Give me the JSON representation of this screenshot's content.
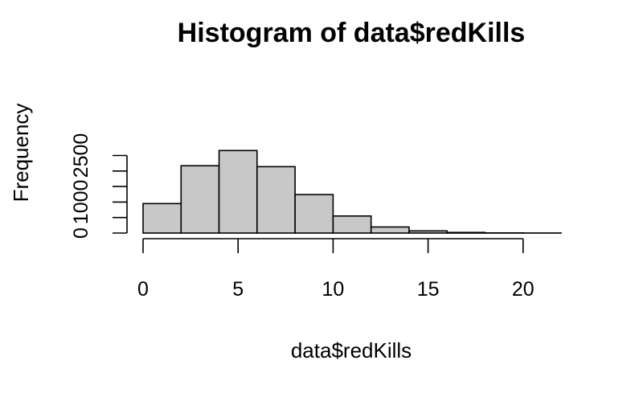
{
  "chart_data": {
    "type": "bar",
    "title": "Histogram of data$redKills",
    "xlabel": "data$redKills",
    "ylabel": "Frequency",
    "bin_edges": [
      0,
      2,
      4,
      6,
      8,
      10,
      12,
      14,
      16,
      18,
      20,
      22
    ],
    "values": [
      950,
      2170,
      2660,
      2140,
      1240,
      550,
      195,
      70,
      20,
      5,
      2
    ],
    "xlim": [
      0,
      22
    ],
    "ylim": [
      0,
      2500
    ],
    "x_ticks": [
      "0",
      "5",
      "10",
      "15",
      "20"
    ],
    "y_ticks": [
      "0",
      "1000",
      "2500"
    ],
    "bar_color": "#c8c8c8",
    "grid": false
  }
}
